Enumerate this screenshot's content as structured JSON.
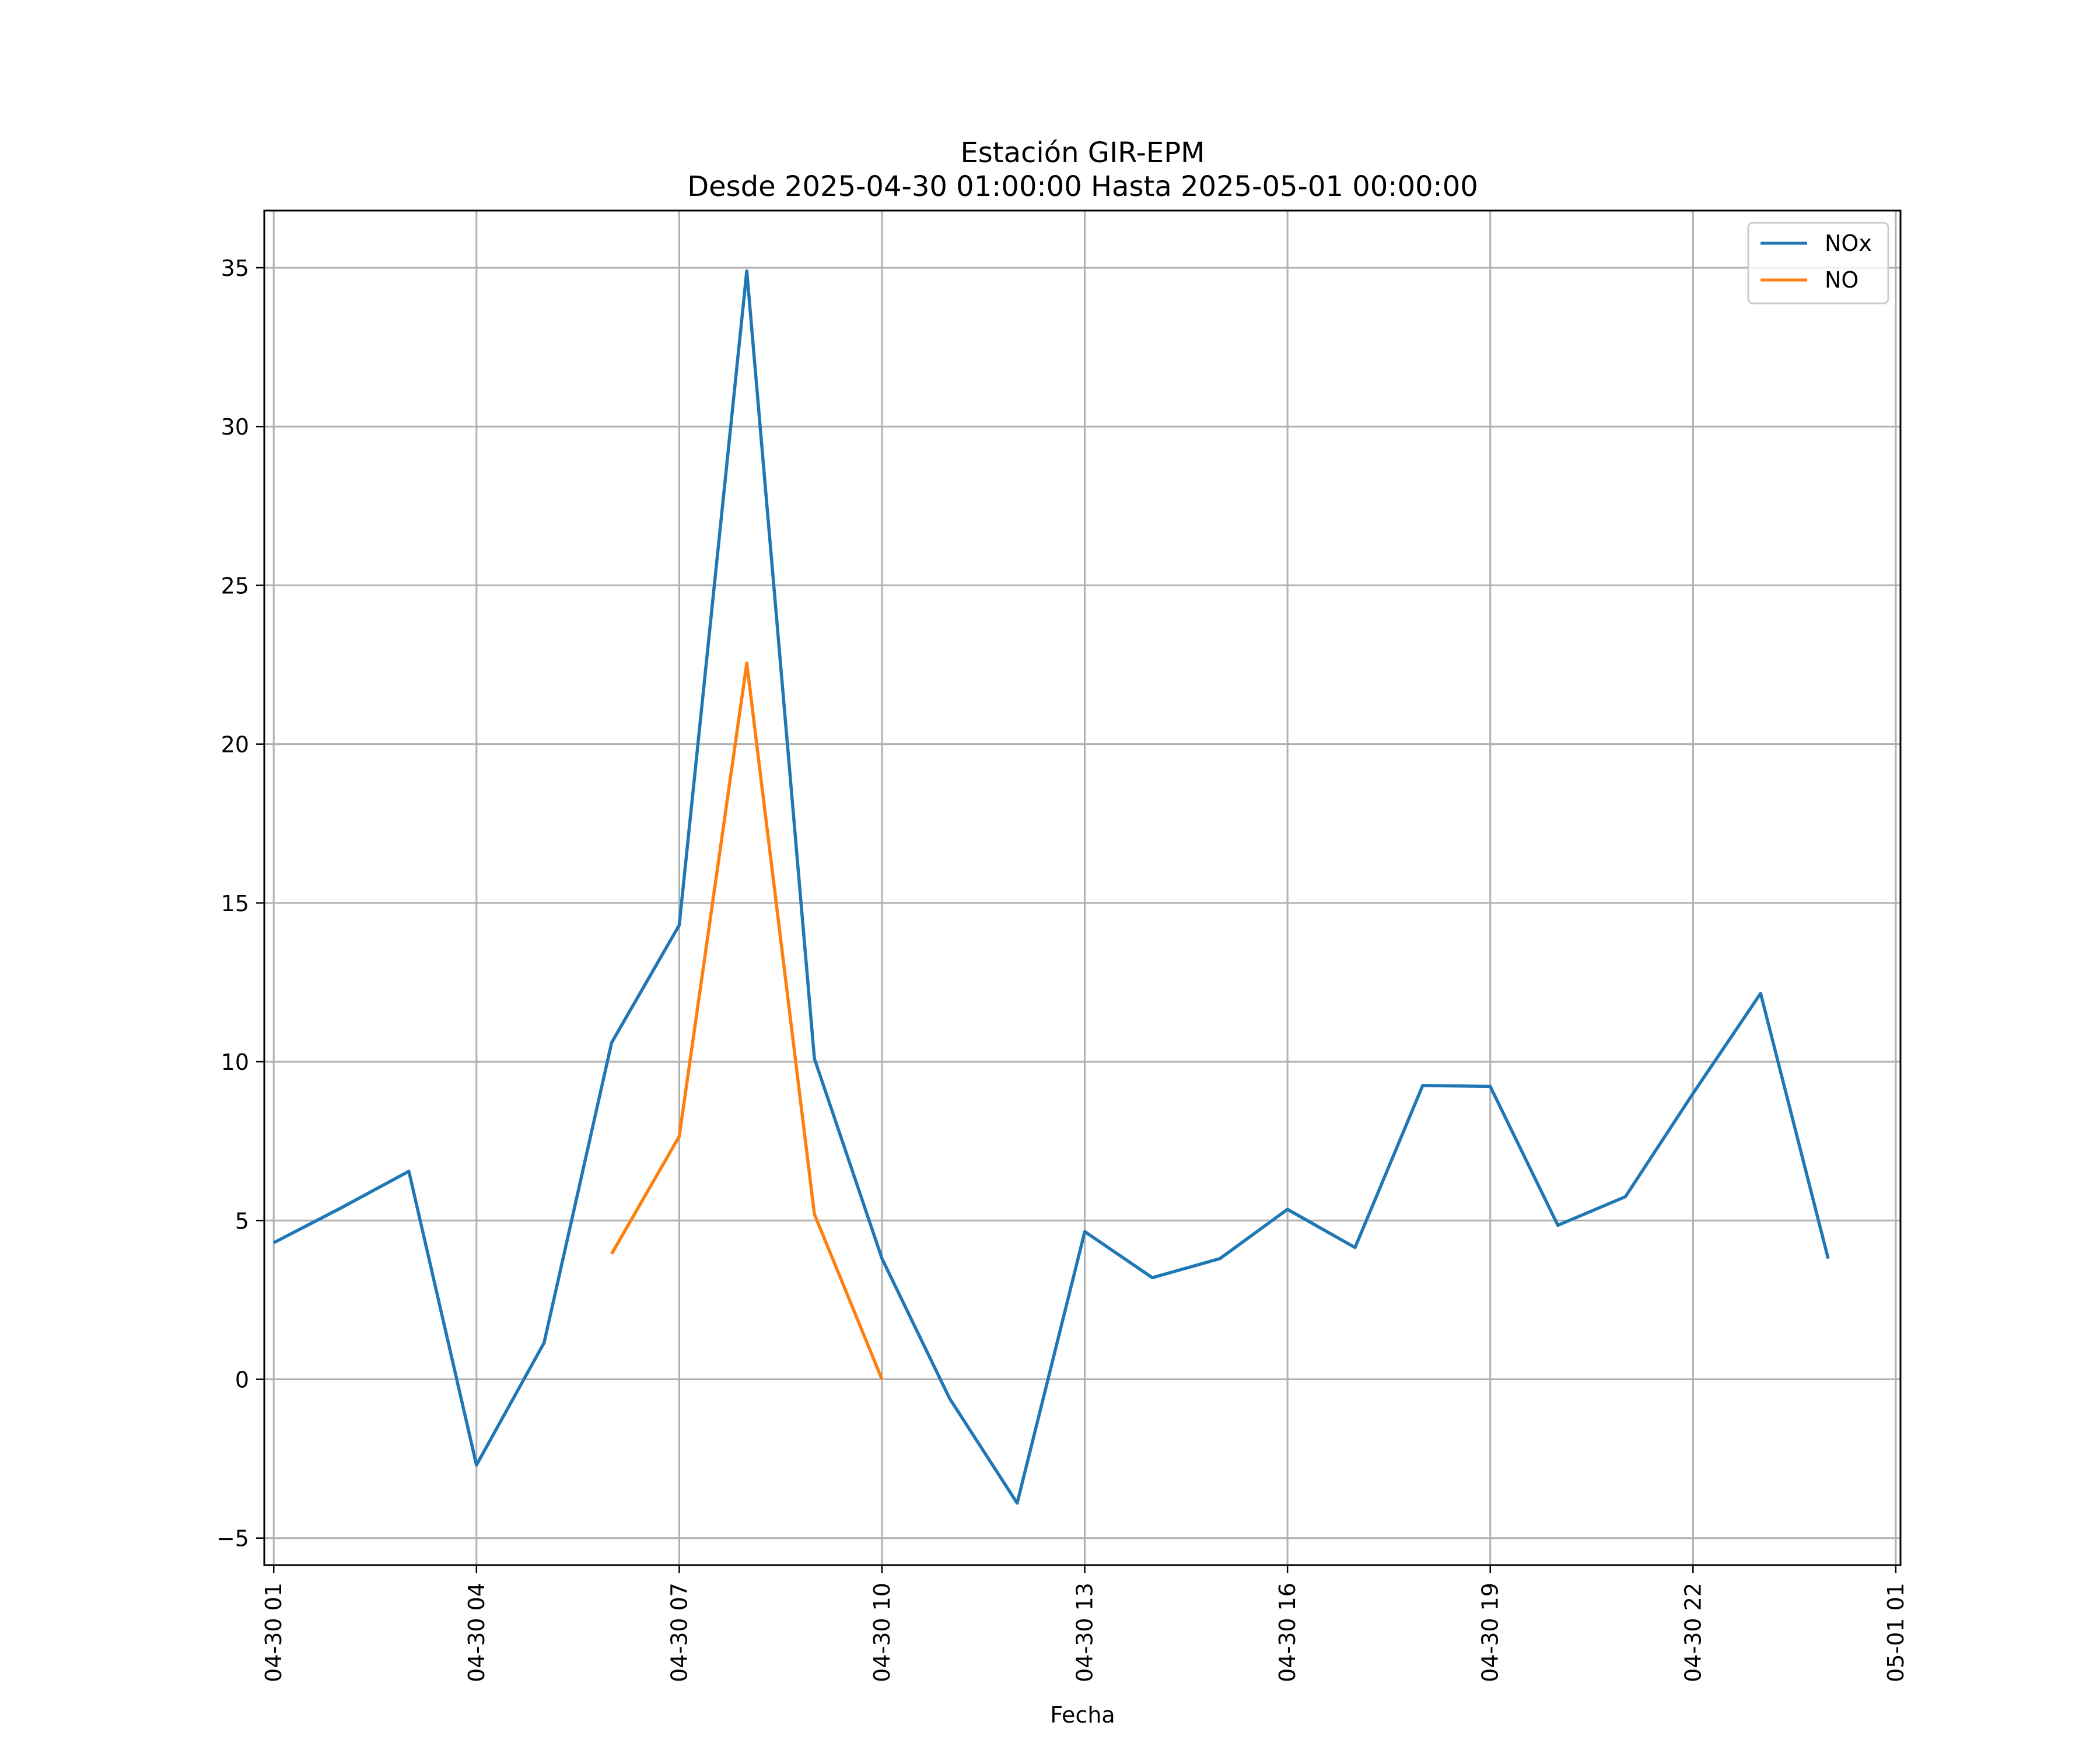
{
  "chart_data": {
    "type": "line",
    "title": "Estación GIR-EPM",
    "subtitle": "Desde 2025-04-30 01:00:00 Hasta 2025-05-01 00:00:00",
    "xlabel": "Fecha",
    "ylabel": "",
    "grid": true,
    "legend_position": "top-right",
    "x_ticks": [
      {
        "hour": 1,
        "label": "04-30 01"
      },
      {
        "hour": 4,
        "label": "04-30 04"
      },
      {
        "hour": 7,
        "label": "04-30 07"
      },
      {
        "hour": 10,
        "label": "04-30 10"
      },
      {
        "hour": 13,
        "label": "04-30 13"
      },
      {
        "hour": 16,
        "label": "04-30 16"
      },
      {
        "hour": 19,
        "label": "04-30 19"
      },
      {
        "hour": 22,
        "label": "04-30 22"
      },
      {
        "hour": 25,
        "label": "05-01 01"
      }
    ],
    "y_ticks": [
      -5,
      0,
      5,
      10,
      15,
      20,
      25,
      30,
      35
    ],
    "xlim": [
      -0.14,
      24.07
    ],
    "ylim": [
      -5.85,
      36.8
    ],
    "series": [
      {
        "name": "NOx",
        "color": "#1f77b4",
        "points": [
          [
            1,
            4.3
          ],
          [
            2,
            5.4
          ],
          [
            3,
            6.55
          ],
          [
            4,
            -2.7
          ],
          [
            5,
            1.15
          ],
          [
            6,
            10.6
          ],
          [
            7,
            14.3
          ],
          [
            8,
            34.9
          ],
          [
            9,
            10.1
          ],
          [
            10,
            3.8
          ],
          [
            11,
            -0.6
          ],
          [
            12,
            -3.9
          ],
          [
            13,
            4.65
          ],
          [
            14,
            3.2
          ],
          [
            15,
            3.8
          ],
          [
            16,
            5.35
          ],
          [
            17,
            4.15
          ],
          [
            18,
            9.25
          ],
          [
            19,
            9.22
          ],
          [
            20,
            4.85
          ],
          [
            21,
            5.75
          ],
          [
            22,
            9.0
          ],
          [
            23,
            12.15
          ],
          [
            24,
            3.8
          ]
        ]
      },
      {
        "name": "NO",
        "color": "#ff7f0e",
        "points": [
          [
            6,
            3.95
          ],
          [
            7,
            7.65
          ],
          [
            8,
            22.55
          ],
          [
            9,
            5.2
          ],
          [
            10,
            0.0
          ]
        ]
      }
    ]
  }
}
